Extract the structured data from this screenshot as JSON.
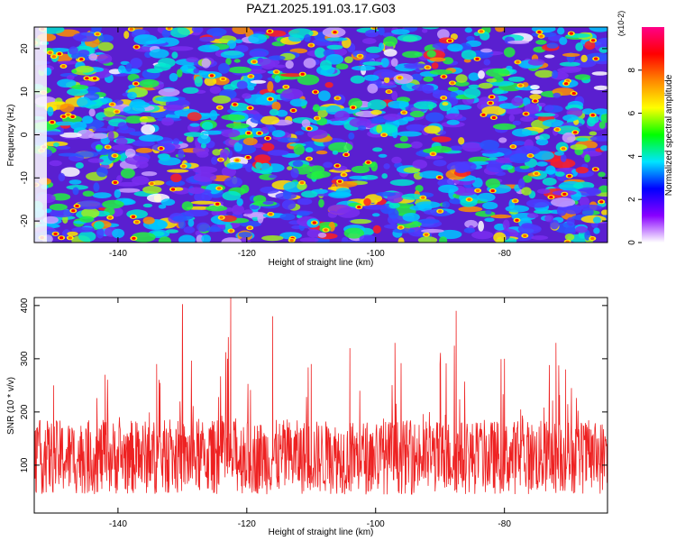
{
  "figure": {
    "title": "PAZ1.2025.191.03.17.G03"
  },
  "chart_data": [
    {
      "type": "heatmap",
      "title": "PAZ1.2025.191.03.17.G03",
      "xlabel": "Height of straight line (km)",
      "ylabel": "Frequency (Hz)",
      "xlim": [
        -153,
        -64
      ],
      "ylim": [
        -25,
        25
      ],
      "x_ticks": [
        -140,
        -120,
        -100,
        -80
      ],
      "y_ticks": [
        -20,
        -10,
        0,
        10,
        20
      ],
      "colorbar": {
        "label": "Normalized spectral amplitude",
        "scale_label": "(x10-2)",
        "range": [
          0,
          10
        ],
        "ticks": [
          0,
          2,
          4,
          6,
          8
        ],
        "colors": [
          "#ffffff",
          "#8800ff",
          "#0000ff",
          "#00e5ff",
          "#00ff00",
          "#ffff00",
          "#ff8800",
          "#ff0000",
          "#ff0088"
        ]
      },
      "grid": false
    },
    {
      "type": "line",
      "xlabel": "Height of straight line (km)",
      "ylabel": "SNR (10 * v/v)",
      "xlim": [
        -153,
        -64
      ],
      "ylim": [
        10,
        415
      ],
      "x_ticks": [
        -140,
        -120,
        -100,
        -80
      ],
      "y_ticks": [
        100,
        200,
        300,
        400
      ],
      "color": "#ee2222",
      "series": [
        {
          "x": [
            -153,
            -150,
            -146,
            -142,
            -138,
            -134,
            -130.5,
            -130,
            -127,
            -123,
            -122.5,
            -118,
            -116,
            -113,
            -110,
            -107,
            -104,
            -101,
            -97,
            -94,
            -90,
            -87.5,
            -84,
            -80,
            -76,
            -72,
            -70.5,
            -67,
            -64
          ],
          "y": [
            130,
            250,
            120,
            270,
            110,
            290,
            130,
            400,
            120,
            300,
            415,
            140,
            380,
            120,
            290,
            160,
            320,
            110,
            330,
            120,
            290,
            390,
            140,
            300,
            120,
            330,
            280,
            120,
            150
          ]
        }
      ],
      "grid": false
    }
  ]
}
